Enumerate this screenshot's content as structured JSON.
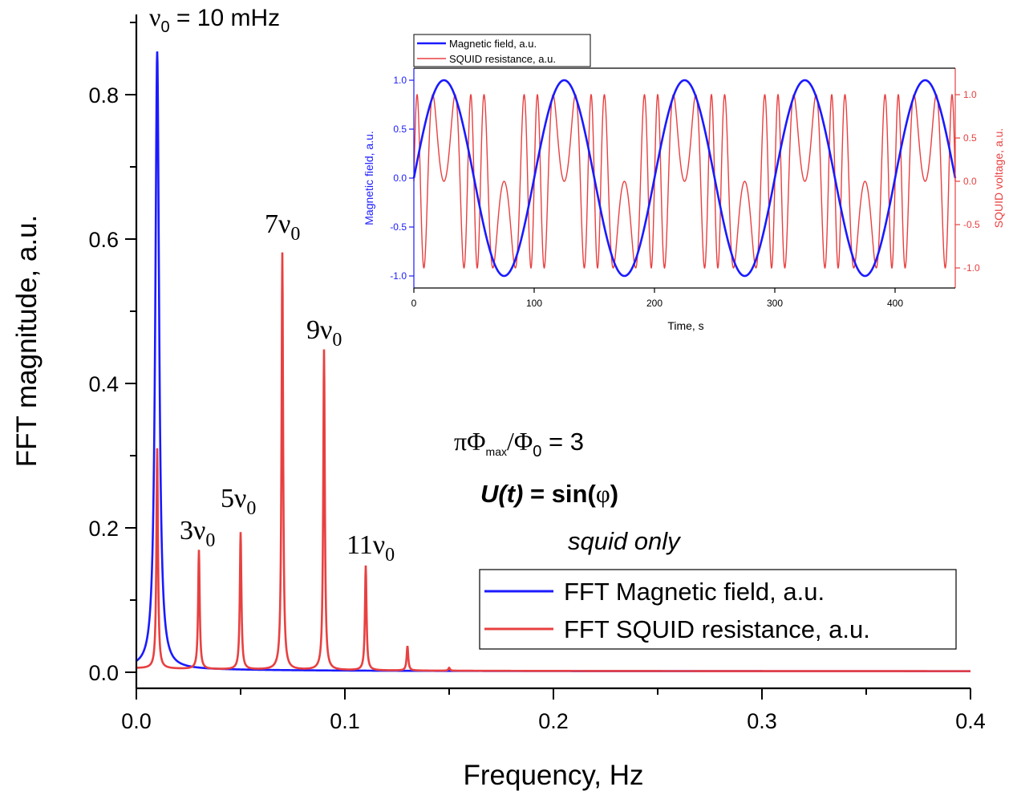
{
  "colors": {
    "blue": "#1a1aff",
    "red": "#e84040"
  },
  "main": {
    "xlabel": "Frequency, Hz",
    "ylabel": "FFT magnitude, a.u.",
    "xticks": [
      "0.0",
      "0.1",
      "0.2",
      "0.3",
      "0.4"
    ],
    "yticks": [
      "0.0",
      "0.2",
      "0.4",
      "0.6",
      "0.8"
    ],
    "legend": [
      "FFT Magnetic field, a.u.",
      "FFT SQUID resistance, a.u."
    ]
  },
  "annotations": {
    "nu0": "ν",
    "nu0_sub": "0",
    "nu0_val": " = 10 mHz",
    "h3": "3ν",
    "h5": "5ν",
    "h7": "7ν",
    "h9": "9ν",
    "h11": "11ν",
    "sub0": "0",
    "phi_a": "πΦ",
    "phi_sub_max": "max",
    "phi_b": "/Φ",
    "phi_sub_0": "0",
    "phi_c": " = 3",
    "formula_a": "U(t)",
    "formula_b": " = sin(",
    "formula_phi": "φ",
    "formula_c": ")",
    "squid_only": "squid only"
  },
  "inset": {
    "xlabel": "Time, s",
    "ylabel_left": "Magnetic field, a.u.",
    "ylabel_right": "SQUID voltage, a.u.",
    "xticks": [
      "0",
      "100",
      "200",
      "300",
      "400"
    ],
    "yticks_left": [
      "1.0",
      "0.5",
      "0.0",
      "-0.5",
      "-1.0"
    ],
    "yticks_right": [
      "1.0",
      "0.5",
      "0.0",
      "-0.5",
      "-1.0"
    ],
    "legend": [
      "Magnetic field, a.u.",
      "SQUID resistance, a.u."
    ]
  },
  "chart_data": [
    {
      "type": "line",
      "xlabel": "Frequency, Hz",
      "ylabel": "FFT magnitude, a.u.",
      "xlim": [
        0,
        0.4
      ],
      "ylim": [
        0,
        0.88
      ],
      "legend_position": "bottom-right",
      "series": [
        {
          "name": "FFT Magnetic field, a.u.",
          "color": "#1a1aff",
          "peaks": [
            {
              "x": 0.01,
              "y": 0.855
            }
          ],
          "baseline": 0.025
        },
        {
          "name": "FFT SQUID resistance, a.u.",
          "color": "#e84040",
          "peaks": [
            {
              "x": 0.01,
              "y": 0.305
            },
            {
              "x": 0.03,
              "y": 0.165
            },
            {
              "x": 0.05,
              "y": 0.19
            },
            {
              "x": 0.07,
              "y": 0.578
            },
            {
              "x": 0.09,
              "y": 0.444
            },
            {
              "x": 0.11,
              "y": 0.145
            },
            {
              "x": 0.13,
              "y": 0.034
            },
            {
              "x": 0.15,
              "y": 0.004
            }
          ],
          "baseline": 0.008
        }
      ]
    },
    {
      "type": "line",
      "xlabel": "Time, s",
      "ylabel": "Magnetic field, a.u.",
      "y2label": "SQUID voltage, a.u.",
      "xlim": [
        0,
        450
      ],
      "ylim": [
        -1.1,
        1.1
      ],
      "y2lim": [
        -1.2,
        1.2
      ],
      "legend_position": "top-left",
      "series": [
        {
          "name": "Magnetic field, a.u.",
          "color": "#1a1aff",
          "function": "sin(2π·0.01·t)"
        },
        {
          "name": "SQUID resistance, a.u.",
          "color": "#e84040",
          "function": "sin(3π·sin(2π·0.01·t))",
          "axis": "right"
        }
      ]
    }
  ]
}
